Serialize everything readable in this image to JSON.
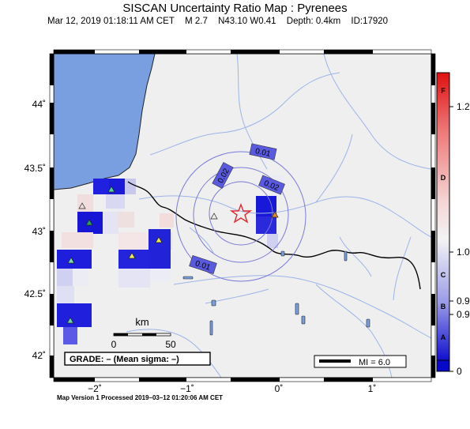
{
  "title": "SISCAN Uncertainty Ratio Map : Pyrenees",
  "event": {
    "datetime": "Mar 12, 2019 01:18:11 AM CET",
    "magnitude": "M 2.7",
    "location": "N43.10 W0.41",
    "depth": "Depth: 0.4km",
    "id": "ID:17920"
  },
  "lat_labels": [
    "44˚",
    "43.5˚",
    "43˚",
    "42.5˚",
    "42˚"
  ],
  "lon_labels": [
    "−2˚",
    "−1˚",
    "0˚",
    "1˚"
  ],
  "contour_labels": [
    "0.01",
    "0.02",
    "0.02",
    "0.01"
  ],
  "scale": {
    "unit": "km",
    "ticks": [
      "0",
      "50"
    ]
  },
  "grade_text": "GRADE: – (Mean sigma: –)",
  "mi_text": "MI = 6.0",
  "colorbar": {
    "letters": [
      "F",
      "D",
      "C",
      "B",
      "A"
    ],
    "values": [
      "1.2",
      "1.0",
      "0.9",
      "0.9",
      "0"
    ]
  },
  "footer": "Map Version 1 Processed 2019–03–12 01:20:06 AM CET",
  "colors": {
    "ocean": "#7a9fe0",
    "land": "#efefef",
    "star": "#e0282e",
    "contour": "#7a7ad8",
    "border": "#000000"
  }
}
